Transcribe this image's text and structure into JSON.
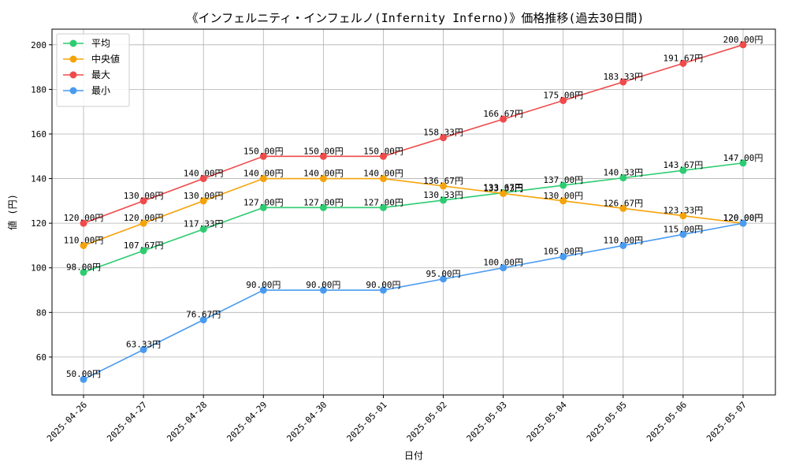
{
  "chart_data": {
    "type": "line",
    "title": "《インフェルニティ・インフェルノ(Infernity Inferno)》価格推移(過去30日間)",
    "xlabel": "日付",
    "ylabel": "値 (円)",
    "x": [
      "2025-04-26",
      "2025-04-27",
      "2025-04-28",
      "2025-04-29",
      "2025-04-30",
      "2025-05-01",
      "2025-05-02",
      "2025-05-03",
      "2025-05-04",
      "2025-05-05",
      "2025-05-06",
      "2025-05-07"
    ],
    "ylim": [
      43,
      207
    ],
    "yticks": [
      60,
      80,
      100,
      120,
      140,
      160,
      180,
      200
    ],
    "grid": true,
    "legend_position": "top-left",
    "value_suffix": "円",
    "series": [
      {
        "name": "平均",
        "color": "#2ecc71",
        "values": [
          98.0,
          107.67,
          117.33,
          127.0,
          127.0,
          127.0,
          130.33,
          133.67,
          137.0,
          140.33,
          143.67,
          147.0
        ]
      },
      {
        "name": "中央値",
        "color": "#f5a30a",
        "values": [
          110.0,
          120.0,
          130.0,
          140.0,
          140.0,
          140.0,
          136.67,
          133.33,
          130.0,
          126.67,
          123.33,
          120.0
        ]
      },
      {
        "name": "最大",
        "color": "#ef4b4b",
        "values": [
          120.0,
          130.0,
          140.0,
          150.0,
          150.0,
          150.0,
          158.33,
          166.67,
          175.0,
          183.33,
          191.67,
          200.0
        ]
      },
      {
        "name": "最小",
        "color": "#4a9bf0",
        "values": [
          50.0,
          63.33,
          76.67,
          90.0,
          90.0,
          90.0,
          95.0,
          100.0,
          105.0,
          110.0,
          115.0,
          120.0
        ]
      }
    ]
  }
}
